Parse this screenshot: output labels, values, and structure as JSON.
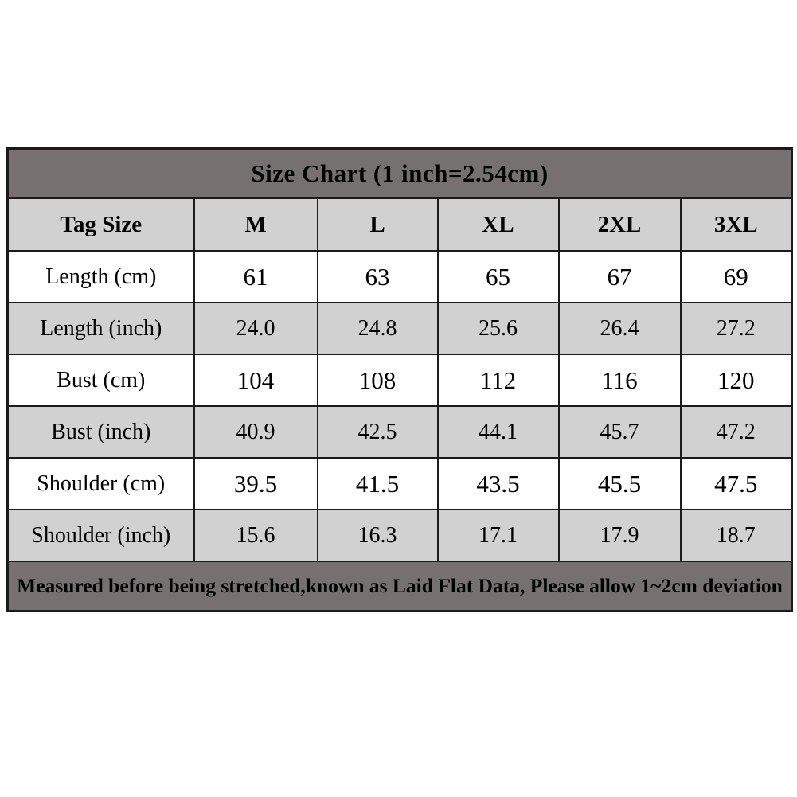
{
  "chart_data": {
    "type": "table",
    "title": "Size Chart (1 inch=2.54cm)",
    "columns": [
      "Tag Size",
      "M",
      "L",
      "XL",
      "2XL",
      "3XL"
    ],
    "rows": [
      {
        "label": "Length (cm)",
        "values": [
          "61",
          "63",
          "65",
          "67",
          "69"
        ]
      },
      {
        "label": "Length (inch)",
        "values": [
          "24.0",
          "24.8",
          "25.6",
          "26.4",
          "27.2"
        ]
      },
      {
        "label": "Bust (cm)",
        "values": [
          "104",
          "108",
          "112",
          "116",
          "120"
        ]
      },
      {
        "label": "Bust (inch)",
        "values": [
          "40.9",
          "42.5",
          "44.1",
          "45.7",
          "47.2"
        ]
      },
      {
        "label": "Shoulder (cm)",
        "values": [
          "39.5",
          "41.5",
          "43.5",
          "45.5",
          "47.5"
        ]
      },
      {
        "label": "Shoulder (inch)",
        "values": [
          "15.6",
          "16.3",
          "17.1",
          "17.9",
          "18.7"
        ]
      }
    ],
    "footnote": "Measured before being stretched,known as Laid Flat Data, Please allow 1~2cm deviation",
    "layout": {
      "legend": "none",
      "grid": "full table borders",
      "banner_color": "#767170",
      "shaded_row_color": "#d2d1d1",
      "plain_row_color": "#ffffff",
      "border_color": "#1b1b1b",
      "text_color": "#000000"
    }
  }
}
